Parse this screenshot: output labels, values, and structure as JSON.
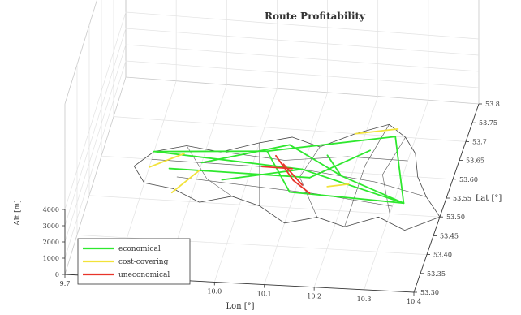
{
  "chart_data": {
    "type": "line",
    "title": "Route Profitability",
    "xlabel": "Lon [°]",
    "ylabel": "Lat [°]",
    "zlabel": "Alt [m]",
    "xlim": [
      9.7,
      10.4
    ],
    "ylim": [
      53.3,
      53.8
    ],
    "zlim": [
      0,
      4000
    ],
    "x_ticks": [
      "9.7",
      "10.0",
      "10.1",
      "10.2",
      "10.3",
      "10.4"
    ],
    "y_ticks": [
      "53.30",
      "53.35",
      "53.40",
      "53.45",
      "53.50",
      "53.55",
      "53.60",
      "53.65",
      "53.7",
      "53.75",
      "53.8"
    ],
    "z_ticks": [
      "0",
      "1000",
      "2000",
      "3000",
      "4000"
    ],
    "grid": true,
    "legend_position": "bottom-left",
    "series": [
      {
        "name": "economical",
        "color": "#2ee82e",
        "segments": [
          [
            [
              9.8,
              53.62
            ],
            [
              10.02,
              53.64
            ]
          ],
          [
            [
              10.02,
              53.64
            ],
            [
              10.26,
              53.7
            ]
          ],
          [
            [
              10.26,
              53.7
            ],
            [
              10.32,
              53.53
            ]
          ],
          [
            [
              10.32,
              53.53
            ],
            [
              10.1,
              53.6
            ]
          ],
          [
            [
              10.1,
              53.6
            ],
            [
              9.8,
              53.62
            ]
          ],
          [
            [
              9.84,
              53.58
            ],
            [
              10.12,
              53.58
            ]
          ],
          [
            [
              10.12,
              53.58
            ],
            [
              10.22,
              53.66
            ]
          ],
          [
            [
              10.02,
              53.64
            ],
            [
              10.09,
              53.54
            ]
          ],
          [
            [
              10.09,
              53.54
            ],
            [
              10.32,
              53.53
            ]
          ],
          [
            [
              9.9,
              53.6
            ],
            [
              10.06,
              53.66
            ]
          ],
          [
            [
              10.06,
              53.66
            ],
            [
              10.18,
              53.59
            ]
          ],
          [
            [
              10.18,
              53.59
            ],
            [
              10.32,
              53.53
            ]
          ],
          [
            [
              9.95,
              53.56
            ],
            [
              10.1,
              53.6
            ]
          ],
          [
            [
              10.14,
              53.64
            ],
            [
              10.18,
              53.59
            ]
          ]
        ]
      },
      {
        "name": "cost-covering",
        "color": "#f2e23a",
        "segments": [
          [
            [
              10.18,
              53.7
            ],
            [
              10.26,
              53.72
            ]
          ],
          [
            [
              9.8,
              53.58
            ],
            [
              9.86,
              53.62
            ]
          ],
          [
            [
              10.16,
              53.56
            ],
            [
              10.2,
              53.57
            ]
          ],
          [
            [
              9.86,
              53.52
            ],
            [
              9.9,
              53.58
            ]
          ]
        ]
      },
      {
        "name": "uneconomical",
        "color": "#e8342a",
        "segments": [
          [
            [
              10.04,
              53.63
            ],
            [
              10.09,
              53.57
            ]
          ],
          [
            [
              10.09,
              53.57
            ],
            [
              10.13,
              53.54
            ]
          ],
          [
            [
              10.06,
              53.61
            ],
            [
              10.11,
              53.56
            ]
          ],
          [
            [
              10.02,
              53.6
            ],
            [
              10.08,
              53.6
            ]
          ]
        ]
      }
    ]
  }
}
